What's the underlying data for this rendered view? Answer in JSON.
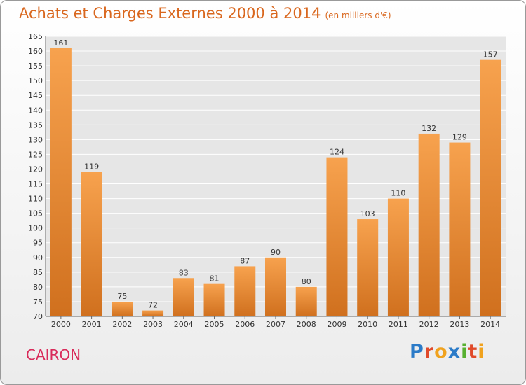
{
  "header": {
    "title": "Achats et Charges Externes 2000 à 2014",
    "unit": "(en milliers d'€)"
  },
  "footer": {
    "commune": "CAIRON",
    "logo": "Proxiti"
  },
  "colors": {
    "bar_light": "#f7a24e",
    "bar_dark": "#d0701e",
    "grid": "#ffffff",
    "plot_bg": "#e6e6e6",
    "title": "#d9671e",
    "commune": "#d92b5a",
    "logo_letters": [
      "#2b7bc8",
      "#e04a2a",
      "#f0a21e",
      "#2b7bc8",
      "#57b030",
      "#e04a2a",
      "#f0a21e"
    ]
  },
  "chart_data": {
    "type": "bar",
    "title": "Achats et Charges Externes 2000 à 2014",
    "subtitle": "(en milliers d'€)",
    "categories": [
      "2000",
      "2001",
      "2002",
      "2003",
      "2004",
      "2005",
      "2006",
      "2007",
      "2008",
      "2009",
      "2010",
      "2011",
      "2012",
      "2013",
      "2014"
    ],
    "values": [
      161,
      119,
      75,
      72,
      83,
      81,
      87,
      90,
      80,
      124,
      103,
      110,
      132,
      129,
      157
    ],
    "ylim": [
      70,
      165
    ],
    "yticks": [
      70,
      75,
      80,
      85,
      90,
      95,
      100,
      105,
      110,
      115,
      120,
      125,
      130,
      135,
      140,
      145,
      150,
      155,
      160,
      165
    ],
    "grid": true,
    "legend": "none"
  }
}
